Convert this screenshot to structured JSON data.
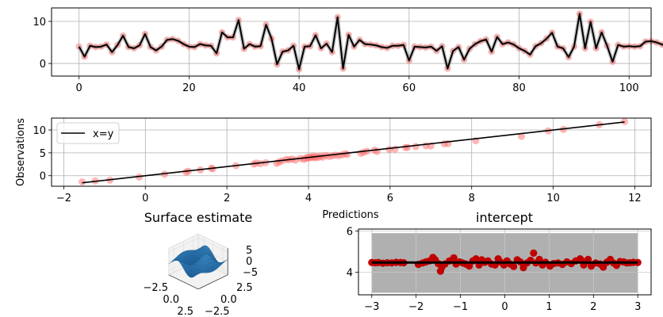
{
  "chart_data": [
    {
      "id": "series",
      "type": "line",
      "title": "",
      "xlabel": "",
      "ylabel": "",
      "xlim": [
        -5,
        104
      ],
      "ylim": [
        -3.0,
        13.2
      ],
      "xticks": [
        0,
        20,
        40,
        60,
        80,
        100
      ],
      "yticks": [
        0,
        10
      ],
      "grid": true,
      "x_start": 0,
      "observations": [
        4.0,
        1.6,
        4.2,
        3.9,
        4.0,
        4.5,
        2.7,
        4.4,
        6.6,
        3.9,
        3.6,
        4.3,
        7.0,
        3.9,
        3.1,
        4.0,
        5.6,
        5.8,
        5.4,
        4.6,
        4.0,
        3.9,
        4.6,
        4.3,
        4.2,
        2.4,
        7.4,
        6.2,
        6.2,
        10.3,
        3.5,
        4.6,
        4.0,
        4.1,
        9.2,
        5.9,
        -0.2,
        2.8,
        3.1,
        4.2,
        -1.4,
        4.0,
        4.1,
        6.7,
        3.6,
        4.7,
        2.7,
        11.0,
        -1.2,
        6.8,
        4.0,
        5.6,
        4.6,
        4.5,
        4.3,
        3.9,
        3.7,
        4.2,
        4.2,
        4.4,
        0.7,
        4.0,
        3.9,
        3.8,
        4.0,
        3.0,
        4.1,
        -1.2,
        3.0,
        3.9,
        0.9,
        3.5,
        4.6,
        5.3,
        5.7,
        2.8,
        6.3,
        4.6,
        5.0,
        4.5,
        3.6,
        3.0,
        2.1,
        4.1,
        4.8,
        5.9,
        7.3,
        4.0,
        3.6,
        1.5,
        4.0,
        11.8,
        3.6,
        9.9,
        3.6,
        7.4,
        4.2,
        0.4,
        4.4,
        4.0,
        4.1,
        4.0,
        4.1,
        5.2,
        5.3,
        5.0,
        4.5,
        4.0,
        3.3,
        1.0
      ],
      "predictions": [
        4.0,
        1.6,
        4.2,
        3.9,
        4.0,
        4.5,
        2.7,
        4.4,
        6.6,
        3.9,
        3.6,
        4.3,
        7.0,
        3.9,
        3.1,
        4.0,
        5.6,
        5.8,
        5.4,
        4.6,
        4.0,
        3.9,
        4.6,
        4.3,
        4.2,
        2.4,
        7.4,
        6.2,
        6.2,
        10.3,
        3.5,
        4.6,
        4.0,
        4.1,
        9.2,
        5.9,
        -0.2,
        2.8,
        3.1,
        4.2,
        -1.4,
        4.0,
        4.1,
        6.7,
        3.6,
        4.7,
        2.7,
        11.0,
        -1.2,
        6.8,
        4.0,
        5.6,
        4.6,
        4.5,
        4.3,
        3.9,
        3.7,
        4.2,
        4.2,
        4.4,
        0.7,
        4.0,
        3.9,
        3.8,
        4.0,
        3.0,
        4.1,
        -1.2,
        3.0,
        3.9,
        0.9,
        3.5,
        4.6,
        5.3,
        5.7,
        2.8,
        6.3,
        4.6,
        5.0,
        4.5,
        3.6,
        3.0,
        2.1,
        4.1,
        4.8,
        5.9,
        7.3,
        4.0,
        3.6,
        1.5,
        4.0,
        11.8,
        3.6,
        9.9,
        3.6,
        7.4,
        4.2,
        0.4,
        4.4,
        4.0,
        4.1,
        4.0,
        4.1,
        5.2,
        5.3,
        5.0,
        4.5,
        4.0,
        3.3,
        1.0
      ],
      "colors": {
        "observations": "#f08080",
        "predictions": "#000000",
        "band": "#808080"
      }
    },
    {
      "id": "scatter",
      "type": "scatter",
      "title": "",
      "xlabel": "Predictions",
      "ylabel": "Observations",
      "xlim": [
        -2.3,
        12.4
      ],
      "ylim": [
        -2.3,
        12.6
      ],
      "xticks": [
        -2,
        0,
        2,
        4,
        6,
        8,
        10,
        12
      ],
      "yticks": [
        0,
        5,
        10
      ],
      "grid": true,
      "legend": {
        "position": "top-left",
        "entries": [
          "x=y"
        ]
      },
      "reference_line": {
        "label": "x=y",
        "x": [
          -1.55,
          11.75
        ],
        "y": [
          -1.55,
          11.75
        ]
      },
      "points_x": [
        -1.55,
        -1.23,
        -0.87,
        -0.15,
        0.47,
        1.0,
        1.05,
        1.35,
        1.62,
        1.65,
        2.22,
        2.66,
        2.72,
        2.82,
        2.95,
        3.22,
        3.28,
        3.35,
        3.45,
        3.52,
        3.6,
        3.68,
        3.8,
        3.88,
        3.93,
        3.97,
        4.0,
        4.03,
        4.07,
        4.1,
        4.13,
        4.17,
        4.2,
        4.25,
        4.3,
        4.35,
        4.42,
        4.5,
        4.58,
        4.66,
        4.74,
        4.82,
        4.9,
        4.95,
        5.28,
        5.35,
        5.43,
        5.62,
        5.68,
        5.98,
        6.12,
        6.38,
        6.43,
        6.63,
        6.88,
        7.0,
        7.33,
        7.42,
        8.1,
        9.22,
        9.88,
        10.25,
        11.13,
        11.75
      ],
      "points_y": [
        -1.35,
        -1.12,
        -0.98,
        -0.3,
        0.33,
        0.78,
        0.96,
        1.27,
        1.64,
        1.52,
        2.18,
        2.56,
        2.8,
        2.62,
        2.85,
        2.7,
        3.0,
        3.25,
        3.55,
        3.5,
        3.65,
        3.41,
        3.8,
        3.58,
        3.75,
        4.05,
        3.86,
        3.98,
        4.12,
        3.95,
        4.28,
        3.9,
        4.15,
        4.02,
        4.3,
        4.05,
        4.45,
        4.2,
        4.35,
        4.5,
        4.4,
        4.55,
        4.8,
        4.65,
        4.9,
        5.1,
        5.35,
        5.6,
        5.32,
        5.75,
        5.8,
        6.15,
        6.2,
        6.38,
        6.55,
        6.5,
        7.0,
        7.03,
        7.65,
        8.6,
        9.8,
        10.12,
        11.15,
        11.85
      ],
      "colors": {
        "points": "#ff6b6b",
        "line": "#000000"
      }
    },
    {
      "id": "surface",
      "type": "surface3d",
      "title": "Surface estimate",
      "x_ticks": [
        "-2.5",
        "0.0",
        "2.5"
      ],
      "y_ticks": [
        "-2.5",
        "0.0",
        "2.5"
      ],
      "z_ticks": [
        "5",
        "0",
        "-5"
      ],
      "colors": {
        "surface": "#1f77b4"
      }
    },
    {
      "id": "intercept",
      "type": "scatter",
      "title": "intercept",
      "xlabel": "",
      "ylabel": "",
      "xlim": [
        -3.3,
        3.3
      ],
      "ylim": [
        2.9,
        6.1
      ],
      "xticks": [
        -3,
        -2,
        -1,
        0,
        1,
        2,
        3
      ],
      "yticks": [
        4,
        6
      ],
      "grid": true,
      "band": {
        "x": [
          -3,
          3
        ],
        "y": [
          3.0,
          5.9
        ]
      },
      "mean_line": {
        "x": [
          -3,
          3
        ],
        "y": 4.47
      },
      "points_x": [
        -3.0,
        -2.92,
        -2.85,
        -2.75,
        -2.65,
        -2.55,
        -2.45,
        -2.35,
        -2.28,
        -1.95,
        -1.85,
        -1.78,
        -1.7,
        -1.62,
        -1.57,
        -1.5,
        -1.45,
        -1.42,
        -1.35,
        -1.25,
        -1.15,
        -1.1,
        -1.02,
        -0.95,
        -0.88,
        -0.8,
        -0.72,
        -0.65,
        -0.58,
        -0.52,
        -0.45,
        -0.38,
        -0.3,
        -0.22,
        -0.15,
        -0.1,
        -0.02,
        0.05,
        0.12,
        0.2,
        0.28,
        0.35,
        0.42,
        0.5,
        0.58,
        0.65,
        0.7,
        0.78,
        0.85,
        0.92,
        1.02,
        1.1,
        1.2,
        1.3,
        1.4,
        1.5,
        1.6,
        1.7,
        1.78,
        1.82,
        1.88,
        1.95,
        2.05,
        2.15,
        2.22,
        2.3,
        2.38,
        2.45,
        2.52,
        2.6,
        2.68,
        2.75,
        2.82,
        2.9,
        3.0
      ],
      "points_y": [
        4.47,
        4.46,
        4.47,
        4.44,
        4.46,
        4.45,
        4.48,
        4.47,
        4.46,
        4.38,
        4.45,
        4.5,
        4.55,
        4.72,
        4.6,
        4.42,
        4.05,
        4.25,
        4.4,
        4.55,
        4.7,
        4.4,
        4.5,
        4.45,
        4.4,
        4.3,
        4.55,
        4.65,
        4.35,
        4.6,
        4.48,
        4.55,
        4.4,
        4.35,
        4.65,
        4.5,
        4.35,
        4.55,
        4.4,
        4.28,
        4.6,
        4.5,
        4.22,
        4.45,
        4.58,
        4.93,
        4.45,
        4.62,
        4.35,
        4.48,
        4.3,
        4.42,
        4.45,
        4.38,
        4.5,
        4.42,
        4.55,
        4.65,
        4.35,
        4.52,
        4.62,
        4.3,
        4.45,
        4.4,
        4.25,
        4.48,
        4.62,
        4.45,
        4.33,
        4.52,
        4.5,
        4.45,
        4.46,
        4.48,
        4.47
      ],
      "colors": {
        "points": "#c00000",
        "band": "#b0b0b0",
        "line": "#000000"
      }
    }
  ]
}
